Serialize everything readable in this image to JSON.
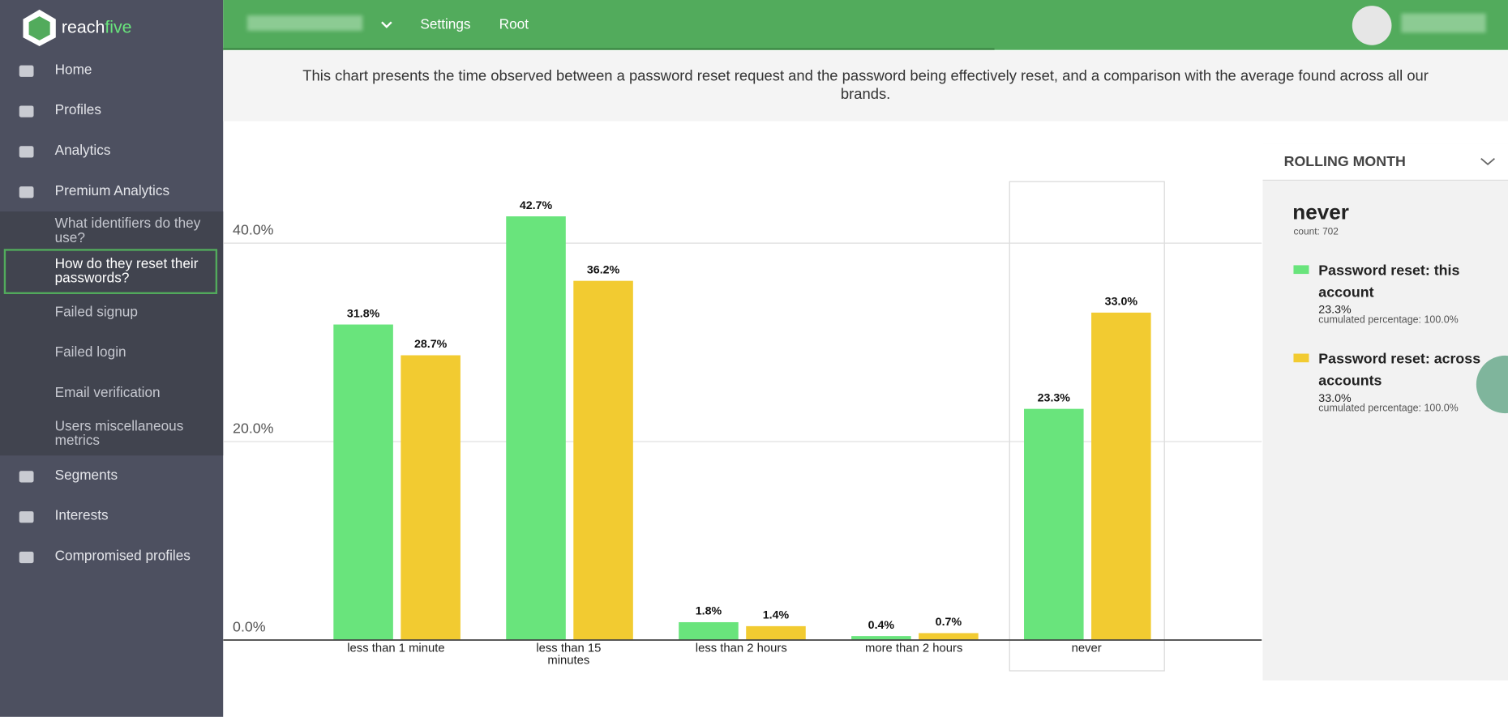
{
  "logo": {
    "part1": "reach",
    "part2": "five"
  },
  "sidebar": {
    "items": [
      "Home",
      "Profiles",
      "Analytics",
      "Premium Analytics"
    ],
    "subitems": [
      "What identifiers do they use?",
      "How do they reset their passwords?",
      "Failed signup",
      "Failed login",
      "Email verification",
      "Users miscellaneous metrics"
    ],
    "bottom_items": [
      "Segments",
      "Interests",
      "Compromised profiles"
    ]
  },
  "topbar": {
    "links": [
      "Settings",
      "Root"
    ]
  },
  "description": "This chart presents the time observed between a password reset request and the password being effectively reset, and a comparison with the average found across all our brands.",
  "chart_data": {
    "type": "bar",
    "categories": [
      "less than 1 minute",
      "less than 15 minutes",
      "less than 2 hours",
      "more than 2 hours",
      "never"
    ],
    "series": [
      {
        "name": "Password reset: this account",
        "color": "#69e47c",
        "values": [
          31.8,
          42.7,
          1.8,
          0.4,
          23.3
        ],
        "value_labels": [
          "31.8%",
          "42.7%",
          "1.8%",
          "0.4%",
          "23.3%"
        ]
      },
      {
        "name": "Password reset: across accounts",
        "color": "#f2cb31",
        "values": [
          28.7,
          36.2,
          1.4,
          0.7,
          33.0
        ],
        "value_labels": [
          "28.7%",
          "36.2%",
          "1.4%",
          "0.7%",
          "33.0%"
        ]
      }
    ],
    "ylim": [
      0,
      50
    ],
    "yticks": [
      {
        "value": 0,
        "label": "0.0%"
      },
      {
        "value": 20,
        "label": "20.0%"
      },
      {
        "value": 40,
        "label": "40.0%"
      }
    ],
    "grid": true
  },
  "panel": {
    "period": "ROLLING MONTH",
    "title": "never",
    "count": "count: 702",
    "items": [
      {
        "value": "23.3%",
        "cumulated": "cumulated percentage: 100.0%"
      },
      {
        "value": "33.0%",
        "cumulated": "cumulated percentage: 100.0%"
      }
    ]
  }
}
